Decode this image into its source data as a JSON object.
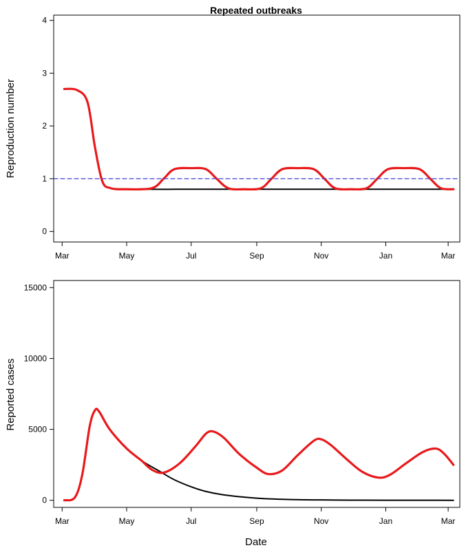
{
  "figure": {
    "title": "Repeated outbreaks",
    "xlabel": "Date"
  },
  "chart_data": [
    {
      "type": "line",
      "title": "Repeated outbreaks",
      "xlabel": "",
      "ylabel": "Reproduction number",
      "x_axis": "date",
      "xlim": [
        "2020-02-22",
        "2021-03-12"
      ],
      "ylim": [
        -0.2,
        4.1
      ],
      "x_ticks": [
        {
          "date": "2020-03-01",
          "label": "Mar"
        },
        {
          "date": "2020-05-01",
          "label": "May"
        },
        {
          "date": "2020-07-01",
          "label": "Jul"
        },
        {
          "date": "2020-09-01",
          "label": "Sep"
        },
        {
          "date": "2020-11-01",
          "label": "Nov"
        },
        {
          "date": "2021-01-01",
          "label": "Jan"
        },
        {
          "date": "2021-03-01",
          "label": "Mar"
        }
      ],
      "y_ticks": [
        0,
        1,
        2,
        3,
        4
      ],
      "grid": false,
      "series": [
        {
          "color": "#000000",
          "style": "solid",
          "points": [
            [
              "2020-03-03",
              2.7
            ],
            [
              "2020-03-15",
              2.68
            ],
            [
              "2020-03-25",
              2.45
            ],
            [
              "2020-04-01",
              1.6
            ],
            [
              "2020-04-08",
              0.95
            ],
            [
              "2020-04-16",
              0.82
            ],
            [
              "2020-05-01",
              0.8
            ],
            [
              "2020-07-01",
              0.8
            ],
            [
              "2020-09-01",
              0.8
            ],
            [
              "2020-11-01",
              0.8
            ],
            [
              "2021-01-01",
              0.8
            ],
            [
              "2021-03-06",
              0.8
            ]
          ]
        },
        {
          "color": "#e8191b",
          "style": "solid",
          "points": [
            [
              "2020-03-03",
              2.7
            ],
            [
              "2020-03-15",
              2.68
            ],
            [
              "2020-03-25",
              2.45
            ],
            [
              "2020-04-01",
              1.6
            ],
            [
              "2020-04-08",
              0.95
            ],
            [
              "2020-04-16",
              0.82
            ],
            [
              "2020-05-01",
              0.8
            ],
            [
              "2020-05-25",
              0.82
            ],
            [
              "2020-06-05",
              1.0
            ],
            [
              "2020-06-15",
              1.18
            ],
            [
              "2020-07-01",
              1.2
            ],
            [
              "2020-07-15",
              1.18
            ],
            [
              "2020-07-25",
              1.0
            ],
            [
              "2020-08-05",
              0.82
            ],
            [
              "2020-08-20",
              0.8
            ],
            [
              "2020-09-05",
              0.82
            ],
            [
              "2020-09-15",
              1.0
            ],
            [
              "2020-09-25",
              1.18
            ],
            [
              "2020-10-10",
              1.2
            ],
            [
              "2020-10-25",
              1.18
            ],
            [
              "2020-11-04",
              1.0
            ],
            [
              "2020-11-14",
              0.82
            ],
            [
              "2020-11-29",
              0.8
            ],
            [
              "2020-12-14",
              0.82
            ],
            [
              "2020-12-24",
              1.0
            ],
            [
              "2021-01-03",
              1.18
            ],
            [
              "2021-01-18",
              1.2
            ],
            [
              "2021-02-02",
              1.18
            ],
            [
              "2021-02-12",
              1.0
            ],
            [
              "2021-02-22",
              0.82
            ],
            [
              "2021-03-06",
              0.8
            ]
          ]
        },
        {
          "color": "#3b3bd6",
          "style": "dashed",
          "points": [
            [
              "2020-02-22",
              1.0
            ],
            [
              "2021-03-12",
              1.0
            ]
          ]
        }
      ]
    },
    {
      "type": "line",
      "title": "",
      "xlabel": "Date",
      "ylabel": "Reported cases",
      "x_axis": "date",
      "xlim": [
        "2020-02-22",
        "2021-03-12"
      ],
      "ylim": [
        -500,
        15500
      ],
      "x_ticks": [
        {
          "date": "2020-03-01",
          "label": "Mar"
        },
        {
          "date": "2020-05-01",
          "label": "May"
        },
        {
          "date": "2020-07-01",
          "label": "Jul"
        },
        {
          "date": "2020-09-01",
          "label": "Sep"
        },
        {
          "date": "2020-11-01",
          "label": "Nov"
        },
        {
          "date": "2021-01-01",
          "label": "Jan"
        },
        {
          "date": "2021-03-01",
          "label": "Mar"
        }
      ],
      "y_ticks": [
        0,
        5000,
        10000,
        15000
      ],
      "grid": false,
      "series": [
        {
          "color": "#000000",
          "style": "solid",
          "points": [
            [
              "2020-03-03",
              0
            ],
            [
              "2020-03-13",
              200
            ],
            [
              "2020-03-20",
              1800
            ],
            [
              "2020-03-27",
              5200
            ],
            [
              "2020-04-01",
              6350
            ],
            [
              "2020-04-05",
              6250
            ],
            [
              "2020-04-15",
              5000
            ],
            [
              "2020-05-01",
              3650
            ],
            [
              "2020-05-15",
              2800
            ],
            [
              "2020-06-01",
              2050
            ],
            [
              "2020-06-15",
              1450
            ],
            [
              "2020-07-01",
              950
            ],
            [
              "2020-07-15",
              620
            ],
            [
              "2020-08-01",
              380
            ],
            [
              "2020-09-01",
              150
            ],
            [
              "2020-10-01",
              60
            ],
            [
              "2020-11-01",
              25
            ],
            [
              "2020-12-01",
              10
            ],
            [
              "2021-01-01",
              5
            ],
            [
              "2021-03-06",
              0
            ]
          ]
        },
        {
          "color": "#e8191b",
          "style": "solid",
          "points": [
            [
              "2020-03-03",
              0
            ],
            [
              "2020-03-13",
              200
            ],
            [
              "2020-03-20",
              1800
            ],
            [
              "2020-03-27",
              5200
            ],
            [
              "2020-04-01",
              6350
            ],
            [
              "2020-04-05",
              6250
            ],
            [
              "2020-04-15",
              5000
            ],
            [
              "2020-05-01",
              3650
            ],
            [
              "2020-05-15",
              2800
            ],
            [
              "2020-05-25",
              2150
            ],
            [
              "2020-06-05",
              1950
            ],
            [
              "2020-06-20",
              2600
            ],
            [
              "2020-07-05",
              3800
            ],
            [
              "2020-07-15",
              4700
            ],
            [
              "2020-07-22",
              4850
            ],
            [
              "2020-08-01",
              4400
            ],
            [
              "2020-08-15",
              3300
            ],
            [
              "2020-09-01",
              2300
            ],
            [
              "2020-09-12",
              1850
            ],
            [
              "2020-09-25",
              2100
            ],
            [
              "2020-10-10",
              3200
            ],
            [
              "2020-10-25",
              4200
            ],
            [
              "2020-11-01",
              4300
            ],
            [
              "2020-11-10",
              3900
            ],
            [
              "2020-11-25",
              2900
            ],
            [
              "2020-12-10",
              2000
            ],
            [
              "2020-12-25",
              1600
            ],
            [
              "2021-01-05",
              1800
            ],
            [
              "2021-01-20",
              2600
            ],
            [
              "2021-02-05",
              3400
            ],
            [
              "2021-02-17",
              3650
            ],
            [
              "2021-02-25",
              3300
            ],
            [
              "2021-03-06",
              2500
            ]
          ]
        }
      ]
    }
  ]
}
